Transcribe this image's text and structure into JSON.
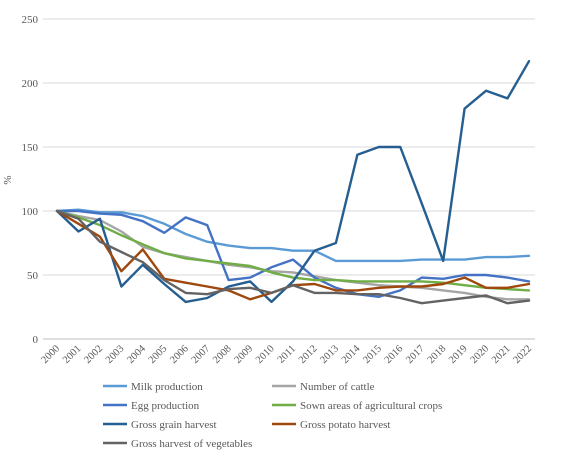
{
  "chart_data": {
    "type": "line",
    "title": "",
    "xlabel": "",
    "ylabel": "%",
    "ylim": [
      0,
      250
    ],
    "yticks": [
      0,
      50,
      100,
      150,
      200,
      250
    ],
    "grid": true,
    "legend_position": "bottom",
    "x": [
      "2000",
      "2001",
      "2002",
      "2003",
      "2004",
      "2005",
      "2006",
      "2007",
      "2008",
      "2009",
      "2010",
      "2011",
      "2012",
      "2013",
      "2014",
      "2015",
      "2016",
      "2017",
      "2018",
      "2019",
      "2020",
      "2021",
      "2022"
    ],
    "series": [
      {
        "name": "Milk production",
        "color": "#5B9BD5",
        "values": [
          100,
          101,
          99,
          99,
          96,
          90,
          82,
          76,
          73,
          71,
          71,
          69,
          69,
          61,
          61,
          61,
          61,
          62,
          62,
          62,
          64,
          64,
          65
        ]
      },
      {
        "name": "Number of cattle",
        "color": "#A5A5A5",
        "values": [
          100,
          96,
          93,
          84,
          72,
          67,
          64,
          61,
          58,
          56,
          53,
          52,
          49,
          46,
          44,
          42,
          41,
          40,
          38,
          36,
          33,
          31,
          31
        ]
      },
      {
        "name": "Egg production",
        "color": "#4472C4",
        "values": [
          100,
          100,
          98,
          97,
          92,
          83,
          95,
          89,
          46,
          48,
          56,
          62,
          48,
          40,
          35,
          33,
          38,
          48,
          47,
          50,
          50,
          48,
          45
        ]
      },
      {
        "name": "Sown areas of agricultural crops",
        "color": "#70AD47",
        "values": [
          100,
          95,
          89,
          81,
          74,
          67,
          63,
          61,
          59,
          57,
          52,
          48,
          46,
          46,
          45,
          45,
          45,
          45,
          44,
          42,
          40,
          39,
          38
        ]
      },
      {
        "name": "Gross grain harvest",
        "color": "#255E91",
        "values": [
          100,
          84,
          94,
          41,
          58,
          43,
          29,
          32,
          41,
          45,
          29,
          45,
          69,
          75,
          144,
          150,
          150,
          106,
          61,
          180,
          194,
          188,
          217
        ]
      },
      {
        "name": "Gross potato harvest",
        "color": "#9E480E",
        "values": [
          100,
          90,
          80,
          53,
          70,
          47,
          44,
          41,
          38,
          31,
          36,
          42,
          43,
          38,
          38,
          40,
          41,
          41,
          43,
          48,
          40,
          40,
          43
        ]
      },
      {
        "name": "Gross harvest of vegetables",
        "color": "#636363",
        "values": [
          100,
          94,
          76,
          68,
          60,
          46,
          36,
          35,
          39,
          40,
          36,
          42,
          36,
          36,
          35,
          35,
          32,
          28,
          30,
          32,
          34,
          28,
          30
        ]
      }
    ]
  }
}
